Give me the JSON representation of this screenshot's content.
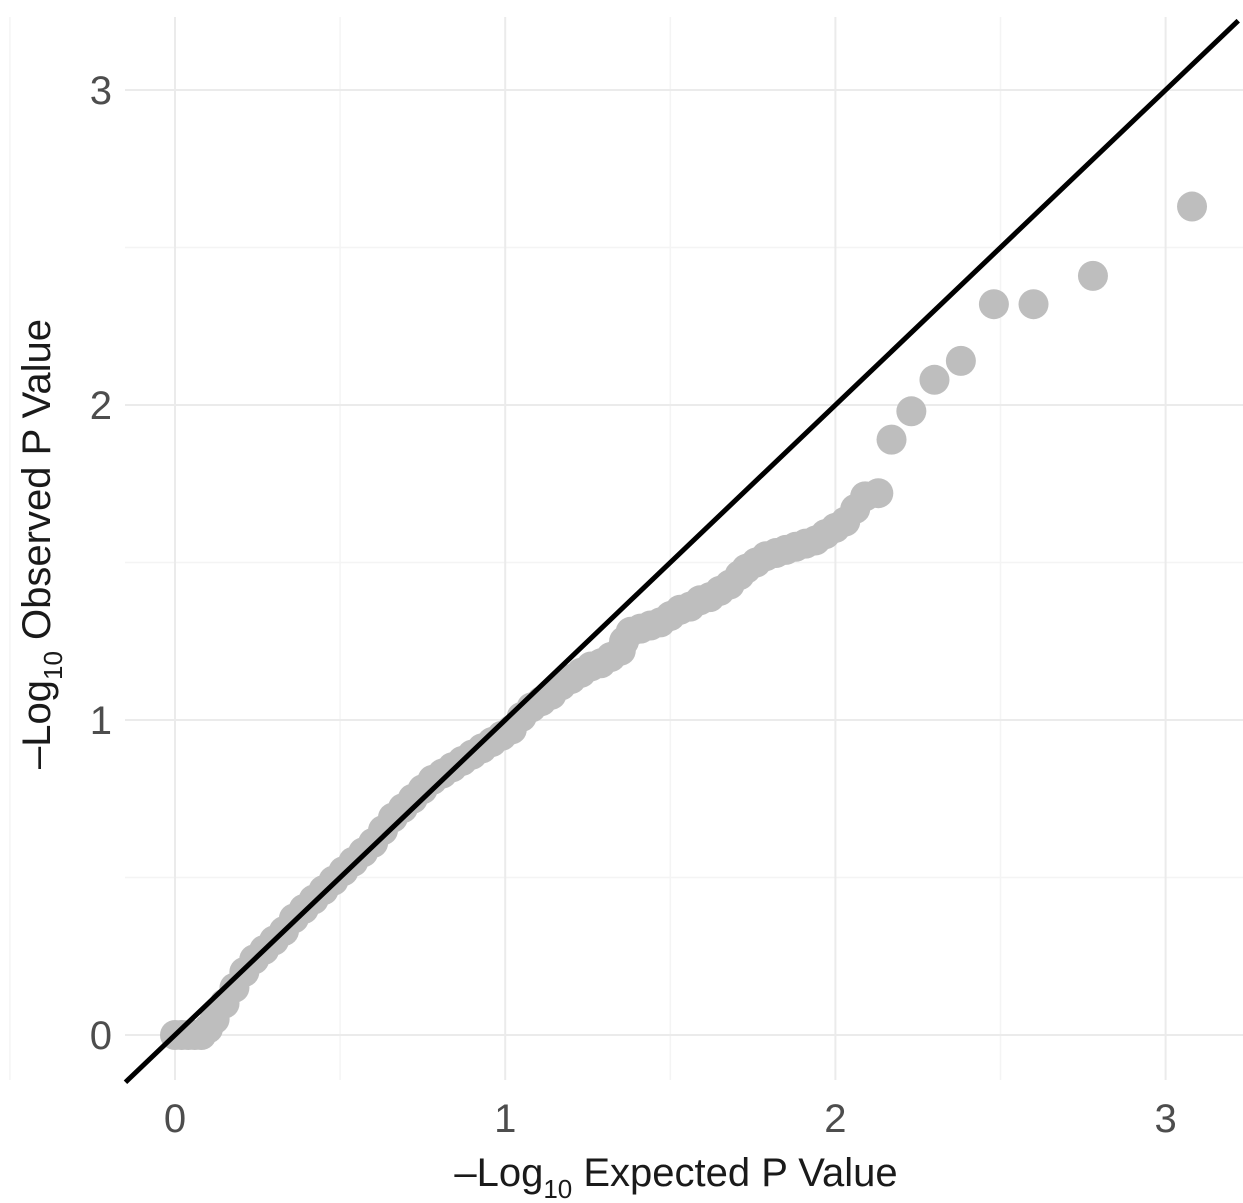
{
  "chart_data": {
    "type": "scatter",
    "title": "",
    "xlabel": {
      "prefix": "–Log",
      "sub": "10",
      "suffix": " Expected P Value"
    },
    "ylabel": {
      "prefix": "–Log",
      "sub": "10",
      "suffix": " Observed P Value"
    },
    "xlim": [
      -0.15,
      3.22
    ],
    "ylim": [
      -0.15,
      3.22
    ],
    "x_ticks": [
      0,
      1,
      2,
      3
    ],
    "y_ticks": [
      0,
      1,
      2,
      3
    ],
    "x_tick_labels": [
      "0",
      "1",
      "2",
      "3"
    ],
    "y_tick_labels": [
      "0",
      "1",
      "2",
      "3"
    ],
    "grid": true,
    "legend": "none",
    "reference_line": {
      "slope": 1,
      "intercept": 0,
      "color": "#000000"
    },
    "point_color": "#bebebe",
    "points": [
      [
        3.08,
        2.63
      ],
      [
        2.78,
        2.41
      ],
      [
        2.6,
        2.32
      ],
      [
        2.48,
        2.32
      ],
      [
        2.38,
        2.14
      ],
      [
        2.3,
        2.08
      ],
      [
        2.23,
        1.98
      ],
      [
        2.17,
        1.89
      ],
      [
        2.13,
        1.72
      ],
      [
        2.09,
        1.71
      ],
      [
        2.06,
        1.67
      ],
      [
        2.03,
        1.63
      ],
      [
        2.0,
        1.61
      ],
      [
        1.97,
        1.59
      ],
      [
        1.94,
        1.57
      ],
      [
        1.91,
        1.56
      ],
      [
        1.88,
        1.55
      ],
      [
        1.85,
        1.54
      ],
      [
        1.82,
        1.53
      ],
      [
        1.79,
        1.52
      ],
      [
        1.76,
        1.5
      ],
      [
        1.73,
        1.48
      ],
      [
        1.71,
        1.46
      ],
      [
        1.68,
        1.43
      ],
      [
        1.65,
        1.41
      ],
      [
        1.62,
        1.39
      ],
      [
        1.59,
        1.38
      ],
      [
        1.56,
        1.36
      ],
      [
        1.53,
        1.35
      ],
      [
        1.5,
        1.33
      ],
      [
        1.47,
        1.31
      ],
      [
        1.44,
        1.3
      ],
      [
        1.41,
        1.29
      ],
      [
        1.38,
        1.28
      ],
      [
        1.36,
        1.25
      ],
      [
        1.35,
        1.22
      ],
      [
        1.32,
        1.2
      ],
      [
        1.29,
        1.18
      ],
      [
        1.26,
        1.17
      ],
      [
        1.23,
        1.15
      ],
      [
        1.2,
        1.13
      ],
      [
        1.17,
        1.11
      ],
      [
        1.14,
        1.08
      ],
      [
        1.11,
        1.06
      ],
      [
        1.08,
        1.04
      ],
      [
        1.05,
        1.01
      ],
      [
        1.02,
        0.97
      ],
      [
        0.99,
        0.95
      ],
      [
        0.96,
        0.93
      ],
      [
        0.93,
        0.91
      ],
      [
        0.9,
        0.89
      ],
      [
        0.87,
        0.87
      ],
      [
        0.84,
        0.85
      ],
      [
        0.81,
        0.83
      ],
      [
        0.78,
        0.81
      ],
      [
        0.75,
        0.78
      ],
      [
        0.72,
        0.75
      ],
      [
        0.69,
        0.72
      ],
      [
        0.66,
        0.69
      ],
      [
        0.63,
        0.65
      ],
      [
        0.6,
        0.61
      ],
      [
        0.57,
        0.58
      ],
      [
        0.54,
        0.55
      ],
      [
        0.51,
        0.52
      ],
      [
        0.48,
        0.49
      ],
      [
        0.45,
        0.46
      ],
      [
        0.42,
        0.43
      ],
      [
        0.39,
        0.4
      ],
      [
        0.36,
        0.37
      ],
      [
        0.33,
        0.33
      ],
      [
        0.3,
        0.3
      ],
      [
        0.27,
        0.27
      ],
      [
        0.24,
        0.24
      ],
      [
        0.21,
        0.2
      ],
      [
        0.18,
        0.15
      ],
      [
        0.15,
        0.1
      ],
      [
        0.12,
        0.05
      ],
      [
        0.1,
        0.02
      ],
      [
        0.08,
        0.0
      ],
      [
        0.06,
        0.0
      ],
      [
        0.04,
        0.0
      ],
      [
        0.02,
        0.0
      ],
      [
        0.0,
        0.0
      ]
    ]
  }
}
